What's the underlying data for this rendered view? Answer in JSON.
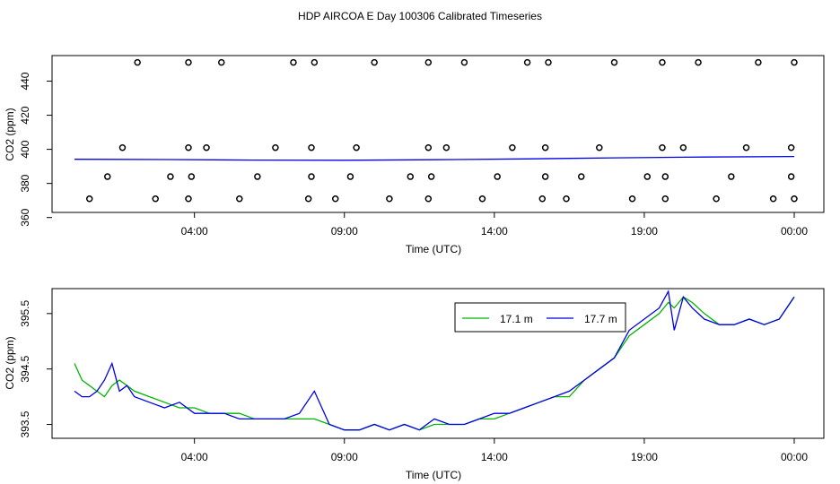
{
  "title": "HDP AIRCOA E  Day 100306  Calibrated Timeseries",
  "colors": {
    "green": "#00b400",
    "blue": "#0000e6",
    "black": "#000000"
  },
  "chart_data": [
    {
      "type": "scatter",
      "xlabel": "Time (UTC)",
      "ylabel": "CO2 (ppm)",
      "x_ticks": [
        "04:00",
        "09:00",
        "14:00",
        "19:00",
        "00:00"
      ],
      "x_tick_hours": [
        4,
        9,
        14,
        19,
        24
      ],
      "y_ticks": [
        360,
        380,
        400,
        420,
        440
      ],
      "xlim": [
        0,
        24.2
      ],
      "ylim": [
        363,
        455
      ],
      "grid": false,
      "calibration_points": {
        "x": [
          0.5,
          1.1,
          1.6,
          2.1,
          2.7,
          3.2,
          3.8,
          3.8,
          3.8,
          3.9,
          4.4,
          4.9,
          5.5,
          6.1,
          6.7,
          7.3,
          7.8,
          7.9,
          7.9,
          8.0,
          8.7,
          9.2,
          9.4,
          10.0,
          10.5,
          11.2,
          11.8,
          11.8,
          11.8,
          11.9,
          12.4,
          13.0,
          13.6,
          14.1,
          14.6,
          15.1,
          15.6,
          15.7,
          15.7,
          15.8,
          16.4,
          16.9,
          17.5,
          18.0,
          18.6,
          19.1,
          19.6,
          19.6,
          19.7,
          19.7,
          20.3,
          20.8,
          21.4,
          21.9,
          22.4,
          22.8,
          23.3,
          23.9,
          23.9,
          24.0,
          24.0
        ],
        "y": [
          371,
          384,
          401,
          451,
          371,
          384,
          401,
          451,
          371,
          384,
          401,
          451,
          371,
          384,
          401,
          451,
          371,
          384,
          401,
          451,
          371,
          384,
          401,
          451,
          371,
          384,
          401,
          451,
          371,
          384,
          401,
          451,
          371,
          384,
          401,
          451,
          371,
          384,
          401,
          451,
          371,
          384,
          401,
          451,
          371,
          384,
          401,
          451,
          371,
          384,
          401,
          451,
          371,
          384,
          401,
          451,
          371,
          384,
          401,
          451,
          371
        ]
      },
      "series": [
        {
          "x": [
            0,
            3,
            6,
            9,
            12,
            15,
            18,
            21,
            24
          ],
          "values": [
            394.2,
            394.0,
            393.7,
            393.6,
            393.9,
            394.4,
            395.0,
            395.5,
            395.8
          ]
        }
      ]
    },
    {
      "type": "line",
      "xlabel": "Time (UTC)",
      "ylabel": "CO2 (ppm)",
      "x_ticks": [
        "04:00",
        "09:00",
        "14:00",
        "19:00",
        "00:00"
      ],
      "x_tick_hours": [
        4,
        9,
        14,
        19,
        24
      ],
      "y_ticks": [
        393.5,
        394.5,
        395.5
      ],
      "y_tick_labels": [
        "393.5",
        "394.5",
        "395.5"
      ],
      "xlim": [
        0,
        24.2
      ],
      "ylim": [
        393.25,
        395.95
      ],
      "grid": false,
      "legend": {
        "position": "top-right",
        "entries": [
          "17.1 m",
          "17.7 m"
        ]
      },
      "series": [
        {
          "name": "17.1 m",
          "x": [
            0,
            0.25,
            0.5,
            0.75,
            1,
            1.25,
            1.5,
            1.75,
            2,
            2.5,
            3,
            3.5,
            4,
            4.5,
            5,
            5.5,
            6,
            6.5,
            7,
            7.5,
            8,
            8.5,
            9,
            9.5,
            10,
            10.5,
            11,
            11.5,
            12,
            12.5,
            13,
            13.5,
            14,
            14.5,
            15,
            15.5,
            16,
            16.5,
            17,
            17.5,
            18,
            18.5,
            19,
            19.5,
            19.8,
            20,
            20.3,
            20.6,
            21,
            21.5,
            22,
            22.5,
            23,
            23.5,
            24
          ],
          "values": [
            394.6,
            394.3,
            394.2,
            394.1,
            394.0,
            394.2,
            394.3,
            394.2,
            394.1,
            394.0,
            393.9,
            393.8,
            393.8,
            393.7,
            393.7,
            393.7,
            393.6,
            393.6,
            393.6,
            393.6,
            393.6,
            393.5,
            393.4,
            393.4,
            393.5,
            393.4,
            393.5,
            393.4,
            393.5,
            393.5,
            393.5,
            393.6,
            393.6,
            393.7,
            393.8,
            393.9,
            394.0,
            394.0,
            394.3,
            394.5,
            394.7,
            395.1,
            395.3,
            395.5,
            395.7,
            395.6,
            395.8,
            395.7,
            395.5,
            395.3,
            395.3,
            395.4,
            395.3,
            395.4,
            395.8
          ]
        },
        {
          "name": "17.7 m",
          "x": [
            0,
            0.25,
            0.5,
            0.75,
            1,
            1.25,
            1.5,
            1.75,
            2,
            2.5,
            3,
            3.5,
            4,
            4.5,
            5,
            5.5,
            6,
            6.5,
            7,
            7.5,
            8,
            8.5,
            9,
            9.5,
            10,
            10.5,
            11,
            11.5,
            12,
            12.5,
            13,
            13.5,
            14,
            14.5,
            15,
            15.5,
            16,
            16.5,
            17,
            17.5,
            18,
            18.5,
            19,
            19.5,
            19.8,
            20,
            20.3,
            20.6,
            21,
            21.5,
            22,
            22.5,
            23,
            23.5,
            24
          ],
          "values": [
            394.1,
            394.0,
            394.0,
            394.1,
            394.3,
            394.6,
            394.1,
            394.2,
            394.0,
            393.9,
            393.8,
            393.9,
            393.7,
            393.7,
            393.7,
            393.6,
            393.6,
            393.6,
            393.6,
            393.7,
            394.1,
            393.5,
            393.4,
            393.4,
            393.5,
            393.4,
            393.5,
            393.4,
            393.6,
            393.5,
            393.5,
            393.6,
            393.7,
            393.7,
            393.8,
            393.9,
            394.0,
            394.1,
            394.3,
            394.5,
            394.7,
            395.2,
            395.4,
            395.6,
            395.9,
            395.2,
            395.8,
            395.6,
            395.4,
            395.3,
            395.3,
            395.4,
            395.3,
            395.4,
            395.8
          ]
        }
      ]
    }
  ]
}
